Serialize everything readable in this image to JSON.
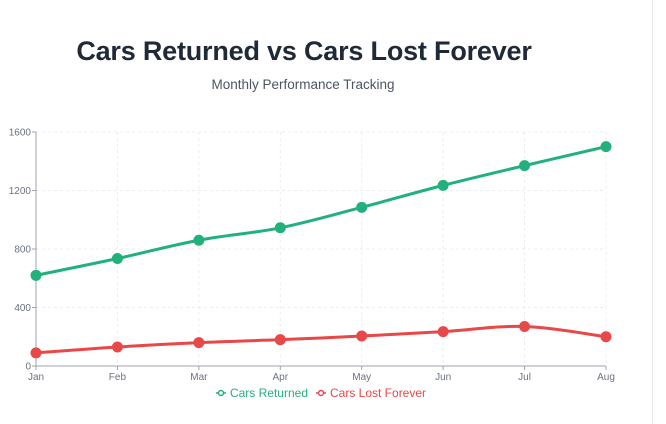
{
  "chart_data": {
    "type": "line",
    "title": "Cars Returned vs Cars Lost Forever",
    "subtitle": "Monthly Performance Tracking",
    "categories": [
      "Jan",
      "Feb",
      "Mar",
      "Apr",
      "May",
      "Jun",
      "Jul",
      "Aug"
    ],
    "yticks": [
      0,
      400,
      800,
      1200,
      1600
    ],
    "ylim": [
      0,
      1600
    ],
    "xlabel": "",
    "ylabel": "",
    "grid": true,
    "legend_position": "bottom-center",
    "series": [
      {
        "name": "Cars Returned",
        "color": "#22b07d",
        "values": [
          620,
          735,
          860,
          945,
          1085,
          1235,
          1370,
          1500
        ]
      },
      {
        "name": "Cars Lost Forever",
        "color": "#e84848",
        "values": [
          90,
          130,
          160,
          180,
          205,
          235,
          270,
          200
        ]
      }
    ]
  }
}
